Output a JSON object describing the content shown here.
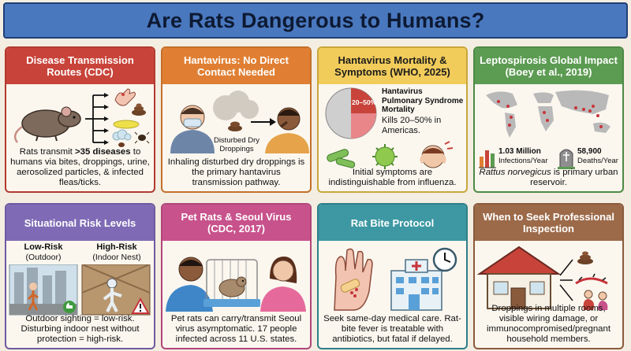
{
  "title": "Are Rats Dangerous to Humans?",
  "cards": {
    "disease": {
      "header": "Disease Transmission Routes (CDC)",
      "text_pre": "Rats transmit ",
      "text_bold": ">35 diseases",
      "text_post": " to humans via bites, droppings, urine, aerosolized particles, & infected fleas/ticks."
    },
    "hantavirus": {
      "header": "Hantavirus: No Direct Contact Needed",
      "label": "Disturbed Dry Droppings",
      "text": "Inhaling disturbed dry droppings is the primary hantavirus transmission pathway."
    },
    "mortality": {
      "header": "Hantavirus Mortality & Symptoms (WHO, 2025)",
      "pie_label": "20–50%",
      "syndrome": "Hantavirus Pulmonary Syndrome Mortality",
      "kills": "Kills 20–50% in Americas.",
      "text": "Initial symptoms are indistinguishable from influenza."
    },
    "lepto": {
      "header": "Leptospirosis Global Impact (Boey et al., 2019)",
      "infections_value": "1.03 Million",
      "infections_label": "Infections/Year",
      "deaths_value": "58,900",
      "deaths_label": "Deaths/Year",
      "text_italic": "Rattus norvegicus",
      "text_post": " is primary urban reservoir."
    },
    "risk": {
      "header": "Situational Risk Levels",
      "low_label": "Low-Risk",
      "low_sub": "(Outdoor)",
      "high_label": "High-Risk",
      "high_sub": "(Indoor Nest)",
      "text": "Outdoor sighting = low-risk. Disturbing indoor nest without protection = high-risk."
    },
    "pet": {
      "header": "Pet Rats & Seoul Virus (CDC, 2017)",
      "text": "Pet rats can carry/transmit Seoul virus asymptomatic. 17 people infected across 11 U.S. states."
    },
    "bite": {
      "header": "Rat Bite Protocol",
      "text": "Seek same-day medical care. Rat-bite fever is treatable with antibiotics, but fatal if delayed."
    },
    "inspect": {
      "header": "When to Seek Professional Inspection",
      "text": "Droppings in multiple rooms, visible wiring damage, or immunocompromised/pregnant household members."
    }
  },
  "colors": {
    "title_bg": "#4a78bf",
    "red": "#c8443a",
    "orange": "#e07f33",
    "yellow": "#f2cc5b",
    "green": "#5c9b52",
    "purple": "#7f6bb5",
    "pink": "#c8528c",
    "teal": "#3d98a3",
    "brown": "#9c6a49"
  },
  "icons": [
    "rat-icon",
    "hand-icon",
    "droppings-icon",
    "urine-icon",
    "cloud-icon",
    "flea-icon",
    "tick-icon",
    "mask-person-icon",
    "coughing-person-icon",
    "pie-chart-icon",
    "virus-icon",
    "sick-person-icon",
    "world-map-icon",
    "bar-chart-icon",
    "tombstone-icon",
    "walking-person-icon",
    "hazmat-icon",
    "thumbs-up-icon",
    "warning-icon",
    "pet-owner-icon",
    "cage-rat-icon",
    "bitten-hand-icon",
    "hospital-icon",
    "clock-icon",
    "house-icon",
    "pregnant-person-icon",
    "wire-icon"
  ]
}
